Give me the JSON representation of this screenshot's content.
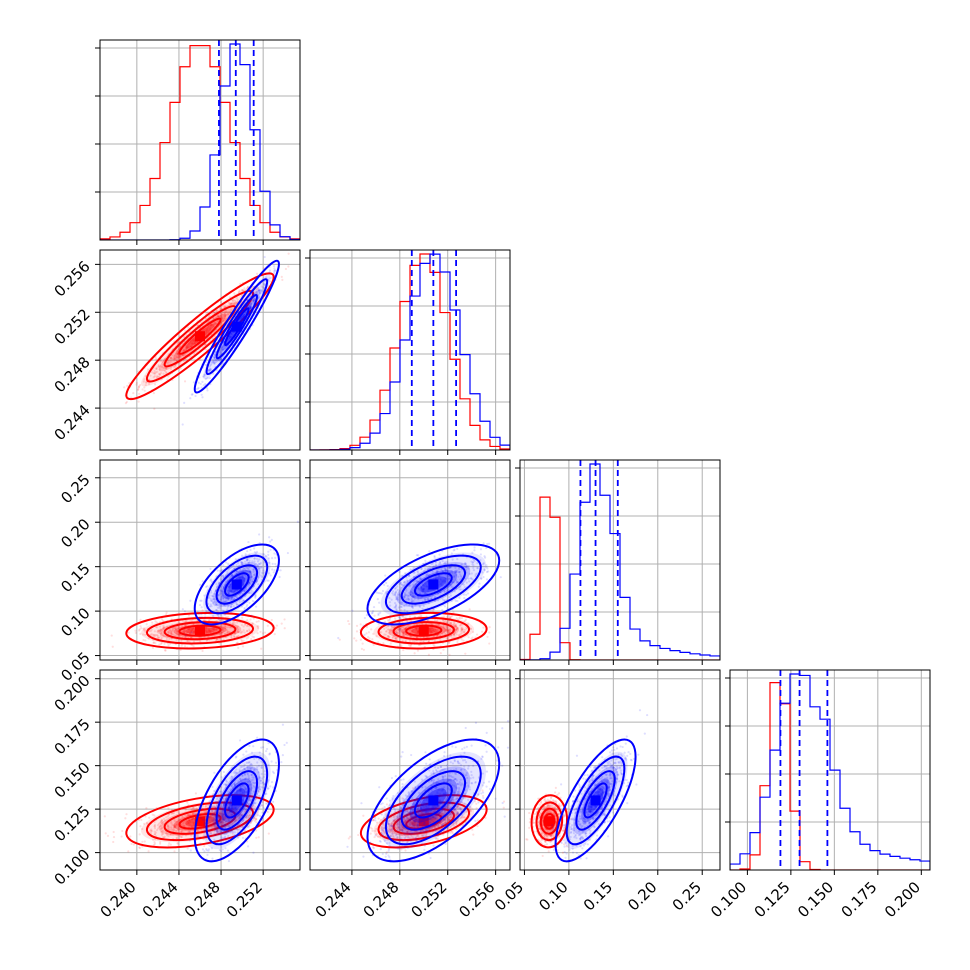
{
  "chart_data": {
    "type": "corner",
    "n_params": 4,
    "grid": true,
    "colors": {
      "red": "#ff0000",
      "blue": "#0000ff"
    },
    "series": [
      {
        "color": "#ff0000",
        "means": [
          0.246,
          0.25,
          0.078,
          0.118
        ],
        "sigmas": [
          0.0028,
          0.0021,
          0.008,
          0.006
        ],
        "correlations": {
          "1-0": 0.94,
          "2-0": 0.15,
          "2-1": 0.1,
          "3-0": 0.45,
          "3-1": 0.45,
          "3-2": 0.05
        }
      },
      {
        "color": "#0000ff",
        "means": [
          0.2495,
          0.2508,
          0.13,
          0.13
        ],
        "sigmas": [
          0.0016,
          0.0022,
          0.018,
          0.014
        ],
        "correlations": {
          "1-0": 0.95,
          "2-0": 0.6,
          "2-1": 0.6,
          "3-0": 0.6,
          "3-1": 0.6,
          "3-2": 0.72
        }
      }
    ],
    "quantile_lines": [
      [
        0.2478,
        0.2494,
        0.2511
      ],
      [
        0.249,
        0.2508,
        0.2527
      ],
      [
        0.113,
        0.13,
        0.155
      ],
      [
        0.119,
        0.13,
        0.146
      ]
    ],
    "axis_ranges": [
      [
        0.2365,
        0.2555
      ],
      [
        0.2405,
        0.2572
      ],
      [
        0.045,
        0.27
      ],
      [
        0.09,
        0.205
      ]
    ],
    "ticks": [
      [
        "0.240",
        "0.244",
        "0.248",
        "0.252"
      ],
      [
        "0.244",
        "0.248",
        "0.252",
        "0.256"
      ],
      [
        "0.05",
        "0.10",
        "0.15",
        "0.20",
        "0.25"
      ],
      [
        "0.100",
        "0.125",
        "0.150",
        "0.175",
        "0.200"
      ]
    ]
  }
}
